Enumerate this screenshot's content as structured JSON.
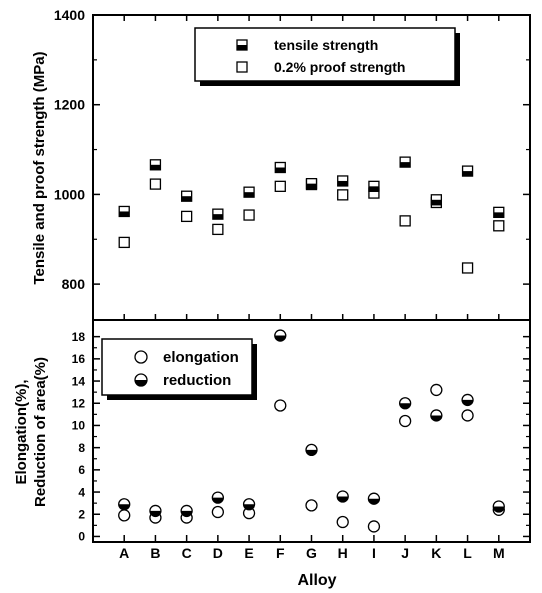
{
  "chart_data": [
    {
      "type": "scatter",
      "panel": "top",
      "ylabel": "Tensile and proof strength (MPa)",
      "ylim": [
        720,
        1400
      ],
      "yticks": [
        800,
        1000,
        1200,
        1400
      ],
      "categories": [
        "A",
        "B",
        "C",
        "D",
        "E",
        "F",
        "G",
        "H",
        "I",
        "J",
        "K",
        "L",
        "M"
      ],
      "grid": false,
      "legend_position": "top-right",
      "series": [
        {
          "name": "tensile strength",
          "marker": "half-filled-square",
          "values": [
            962,
            1066,
            996,
            956,
            1005,
            1060,
            1024,
            1030,
            1018,
            1072,
            988,
            1052,
            960
          ]
        },
        {
          "name": "0.2% proof strength",
          "marker": "open-square",
          "values": [
            893,
            1023,
            951,
            922,
            954,
            1018,
            1022,
            999,
            1003,
            941,
            982,
            836,
            930
          ]
        }
      ]
    },
    {
      "type": "scatter",
      "panel": "bottom",
      "xlabel": "Alloy",
      "ylabel": "Elongation(%), Reduction of area(%)",
      "ylabel_lines": [
        "Elongation(%),",
        "Reduction of area(%)"
      ],
      "ylim": [
        -0.5,
        19.5
      ],
      "yticks": [
        0,
        2,
        4,
        6,
        8,
        10,
        12,
        14,
        16,
        18
      ],
      "categories": [
        "A",
        "B",
        "C",
        "D",
        "E",
        "F",
        "G",
        "H",
        "I",
        "J",
        "K",
        "L",
        "M"
      ],
      "grid": false,
      "legend_position": "top-left",
      "series": [
        {
          "name": "elongation",
          "marker": "open-circle",
          "values": [
            1.9,
            1.7,
            1.7,
            2.2,
            2.1,
            11.8,
            2.8,
            1.3,
            0.9,
            10.4,
            13.2,
            10.9,
            2.4
          ]
        },
        {
          "name": "reduction",
          "marker": "half-filled-circle",
          "values": [
            2.9,
            2.3,
            2.3,
            3.5,
            2.9,
            18.1,
            7.8,
            3.6,
            3.4,
            12.0,
            10.9,
            12.3,
            2.7
          ]
        }
      ]
    }
  ]
}
